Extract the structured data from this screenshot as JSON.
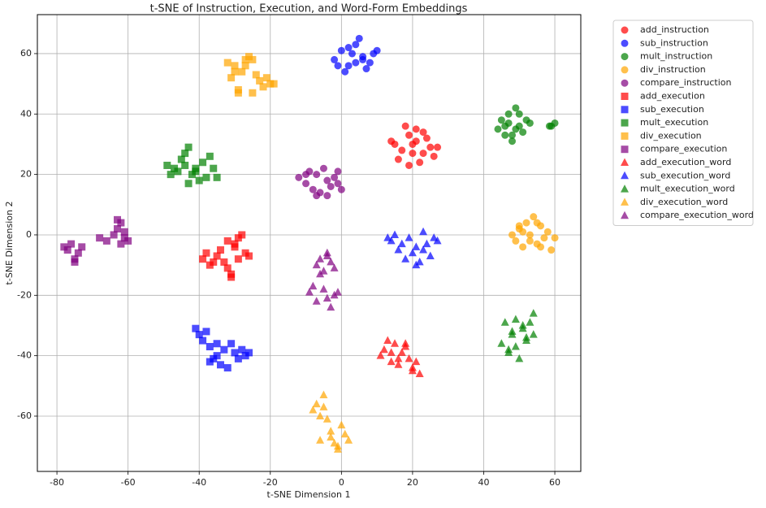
{
  "chart_data": {
    "type": "scatter",
    "title": "t-SNE of Instruction, Execution, and Word-Form Embeddings",
    "x_label": "t-SNE Dimension 1",
    "y_label": "t-SNE Dimension 2",
    "xlim": [
      -85.5,
      67.3
    ],
    "ylim": [
      -78.3,
      72.9
    ],
    "xticks": [
      -80,
      -60,
      -40,
      -20,
      0,
      20,
      40,
      60
    ],
    "yticks": [
      -60,
      -40,
      -20,
      0,
      20,
      40,
      60
    ],
    "grid": true,
    "legend": "outside right",
    "series": [
      {
        "name": "add_instruction",
        "color": "red",
        "marker": "o",
        "x": [
          15,
          17,
          19,
          21,
          23,
          25,
          27,
          16,
          18,
          20,
          22,
          24,
          26,
          19,
          21,
          14,
          23,
          20
        ],
        "y": [
          30,
          28,
          33,
          31,
          34,
          29,
          29,
          25,
          36,
          27,
          24,
          32,
          26,
          23,
          35,
          31,
          27,
          30
        ]
      },
      {
        "name": "sub_instruction",
        "color": "blue",
        "marker": "o",
        "x": [
          -2,
          0,
          2,
          4,
          6,
          8,
          10,
          1,
          3,
          5,
          7,
          9,
          4,
          2,
          6,
          -1
        ],
        "y": [
          58,
          61,
          56,
          63,
          59,
          57,
          61,
          54,
          60,
          65,
          55,
          60,
          57,
          62,
          58,
          56
        ]
      },
      {
        "name": "mult_instruction",
        "color": "green",
        "marker": "o",
        "x": [
          44,
          45,
          46,
          47,
          48,
          49,
          50,
          51,
          52,
          53,
          46,
          48,
          50,
          47,
          49,
          59,
          60,
          58.5
        ],
        "y": [
          35,
          38,
          33,
          40,
          31,
          42,
          36,
          34,
          38,
          37,
          36,
          33,
          40,
          37,
          35,
          36,
          37,
          36
        ]
      },
      {
        "name": "div_instruction",
        "color": "orange",
        "marker": "o",
        "x": [
          48,
          49,
          50,
          51,
          52,
          53,
          54,
          55,
          56,
          57,
          58,
          59,
          60,
          51,
          53,
          55,
          50,
          56
        ],
        "y": [
          0,
          -2,
          2,
          -4,
          4,
          0,
          6,
          -3,
          3,
          -1,
          1,
          -5,
          -1,
          1,
          -2,
          4,
          3,
          -4
        ]
      },
      {
        "name": "compare_instruction",
        "color": "purple",
        "marker": "o",
        "x": [
          -12,
          -10,
          -9,
          -8,
          -7,
          -6,
          -5,
          -4,
          -3,
          -2,
          -1,
          0,
          -7,
          -4,
          -10,
          -1
        ],
        "y": [
          19,
          17,
          21,
          15,
          20,
          14,
          22,
          18,
          16,
          19,
          21,
          15,
          13,
          13,
          20,
          17
        ]
      },
      {
        "name": "add_execution",
        "color": "red",
        "marker": "s",
        "x": [
          -39,
          -38,
          -37,
          -36,
          -35,
          -34,
          -33,
          -32,
          -31,
          -30,
          -29,
          -28,
          -27,
          -26,
          -31,
          -30,
          -32,
          -29
        ],
        "y": [
          -8,
          -6,
          -10,
          -9,
          -7,
          -5,
          -9,
          -11,
          -14,
          -3,
          -1,
          0,
          -6,
          -7,
          -13,
          -4,
          -2,
          -8
        ]
      },
      {
        "name": "sub_execution",
        "color": "blue",
        "marker": "s",
        "x": [
          -41,
          -40,
          -39,
          -38,
          -37,
          -36,
          -35,
          -34,
          -33,
          -32,
          -31,
          -30,
          -29,
          -28,
          -27,
          -26,
          -37,
          -35
        ],
        "y": [
          -31,
          -33,
          -35,
          -32,
          -37,
          -41,
          -40,
          -43,
          -38,
          -44,
          -36,
          -39,
          -41,
          -38,
          -40,
          -39,
          -42,
          -36
        ]
      },
      {
        "name": "mult_execution",
        "color": "green",
        "marker": "s",
        "x": [
          -49,
          -48,
          -47,
          -46,
          -45,
          -44,
          -43,
          -42,
          -41,
          -40,
          -39,
          -38,
          -37,
          -36,
          -35,
          -43,
          -44,
          -41
        ],
        "y": [
          23,
          20,
          22,
          21,
          25,
          27,
          29,
          20,
          22,
          18,
          24,
          19,
          26,
          22,
          19,
          17,
          23,
          21
        ]
      },
      {
        "name": "div_execution",
        "color": "orange",
        "marker": "s",
        "x": [
          -32,
          -31,
          -30,
          -29,
          -28,
          -27,
          -26,
          -25,
          -24,
          -23,
          -22,
          -21,
          -20,
          -19,
          -30,
          -27,
          -25,
          -29
        ],
        "y": [
          57,
          52,
          56,
          48,
          54,
          58,
          59,
          47,
          53,
          51,
          49,
          52,
          50,
          50,
          54,
          56,
          58,
          47
        ]
      },
      {
        "name": "compare_execution",
        "color": "purple",
        "marker": "s",
        "x": [
          -78,
          -77,
          -76,
          -75,
          -74,
          -73,
          -68,
          -66,
          -64,
          -63,
          -62,
          -61,
          -60,
          -62,
          -63,
          -61,
          -75
        ],
        "y": [
          -4,
          -5,
          -3,
          -8,
          -6,
          -4,
          -1,
          -2,
          0,
          2,
          4,
          1,
          -2,
          -3,
          5,
          -1,
          -9
        ]
      },
      {
        "name": "add_execution_word",
        "color": "red",
        "marker": "^",
        "x": [
          11,
          12,
          13,
          14,
          15,
          16,
          17,
          18,
          19,
          20,
          21,
          22,
          14,
          16,
          18,
          20
        ],
        "y": [
          -40,
          -38,
          -35,
          -42,
          -36,
          -43,
          -39,
          -36,
          -41,
          -44,
          -42,
          -46,
          -39,
          -41,
          -37,
          -45
        ]
      },
      {
        "name": "sub_execution_word",
        "color": "blue",
        "marker": "^",
        "x": [
          13,
          14,
          15,
          16,
          17,
          18,
          19,
          20,
          21,
          22,
          23,
          24,
          25,
          26,
          27,
          21,
          23
        ],
        "y": [
          -1,
          -2,
          0,
          -5,
          -3,
          -8,
          -1,
          -6,
          -4,
          -9,
          1,
          -3,
          -7,
          -1,
          -2,
          -10,
          -5
        ]
      },
      {
        "name": "mult_execution_word",
        "color": "green",
        "marker": "^",
        "x": [
          45,
          46,
          47,
          48,
          49,
          50,
          51,
          52,
          53,
          54,
          47,
          49,
          51,
          48,
          52,
          54
        ],
        "y": [
          -36,
          -29,
          -39,
          -33,
          -28,
          -41,
          -31,
          -35,
          -29,
          -26,
          -38,
          -37,
          -30,
          -32,
          -34,
          -33
        ]
      },
      {
        "name": "div_execution_word",
        "color": "orange",
        "marker": "^",
        "x": [
          -8,
          -7,
          -6,
          -5,
          -4,
          -3,
          -2,
          -1,
          0,
          1,
          2,
          -5,
          -3,
          -6,
          -1
        ],
        "y": [
          -58,
          -56,
          -68,
          -53,
          -61,
          -65,
          -69,
          -71,
          -63,
          -66,
          -68,
          -57,
          -67,
          -60,
          -70
        ]
      },
      {
        "name": "compare_execution_word",
        "color": "purple",
        "marker": "^",
        "x": [
          -7,
          -6,
          -5,
          -4,
          -3,
          -2,
          -6,
          -4,
          -9,
          -8,
          -7,
          -5,
          -3,
          -2,
          -1,
          -4
        ],
        "y": [
          -10,
          -8,
          -12,
          -7,
          -9,
          -11,
          -13,
          -6,
          -19,
          -17,
          -22,
          -18,
          -24,
          -20,
          -19,
          -21
        ]
      }
    ]
  }
}
